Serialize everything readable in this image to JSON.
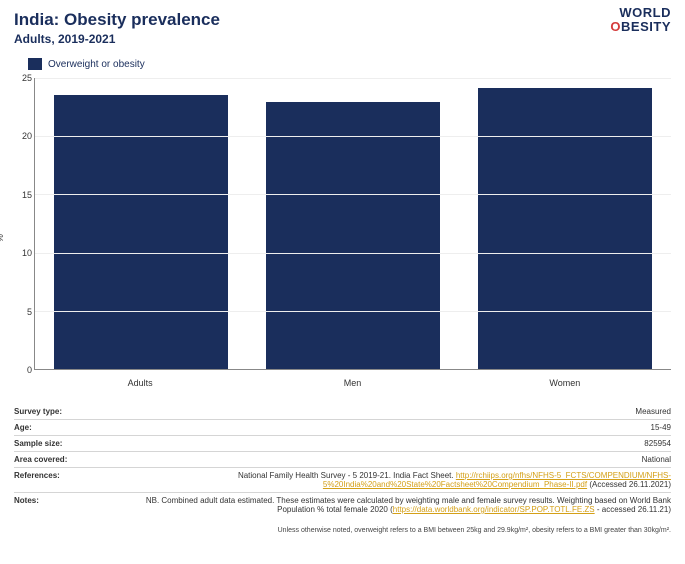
{
  "header": {
    "title": "India: Obesity prevalence",
    "subtitle": "Adults, 2019-2021",
    "logo_line1": "WORLD",
    "logo_line2_pre": "",
    "logo_line2_accent": "O",
    "logo_line2_post": "BESITY"
  },
  "legend": {
    "swatch_color": "#1a2e5c",
    "label": "Overweight or obesity"
  },
  "chart": {
    "type": "bar",
    "y_title": "%",
    "ylim_max": 25,
    "yticks": [
      0,
      5,
      10,
      15,
      20,
      25
    ],
    "categories": [
      "Adults",
      "Men",
      "Women"
    ],
    "values": [
      23.5,
      22.9,
      24.1
    ],
    "bar_color": "#1a2e5c",
    "grid_color": "#eeeeee",
    "axis_color": "#888888",
    "background_color": "#ffffff"
  },
  "meta": {
    "rows": [
      {
        "key": "Survey type:",
        "val_plain": "Measured"
      },
      {
        "key": "Age:",
        "val_plain": "15-49"
      },
      {
        "key": "Sample size:",
        "val_plain": "825954"
      },
      {
        "key": "Area covered:",
        "val_plain": "National"
      },
      {
        "key": "References:",
        "val_pre": "National Family Health Survey - 5 2019-21. India Fact Sheet. ",
        "val_link": "http://rchiips.org/nfhs/NFHS-5_FCTS/COMPENDIUM/NFHS-5%20India%20and%20State%20Factsheet%20Compendium_Phase-II.pdf",
        "val_post": " (Accessed 26.11.2021)"
      },
      {
        "key": "Notes:",
        "val_pre": "NB. Combined adult data estimated. These estimates were calculated by weighting male and female survey results. Weighting based on World Bank Population % total female 2020 (",
        "val_link": "https://data.worldbank.org/indicator/SP.POP.TOTL.FE.ZS",
        "val_post": " - accessed 26.11.21)"
      }
    ]
  },
  "footnote": "Unless otherwise noted, overweight refers to a BMI between 25kg and 29.9kg/m², obesity refers to a BMI greater than 30kg/m²."
}
